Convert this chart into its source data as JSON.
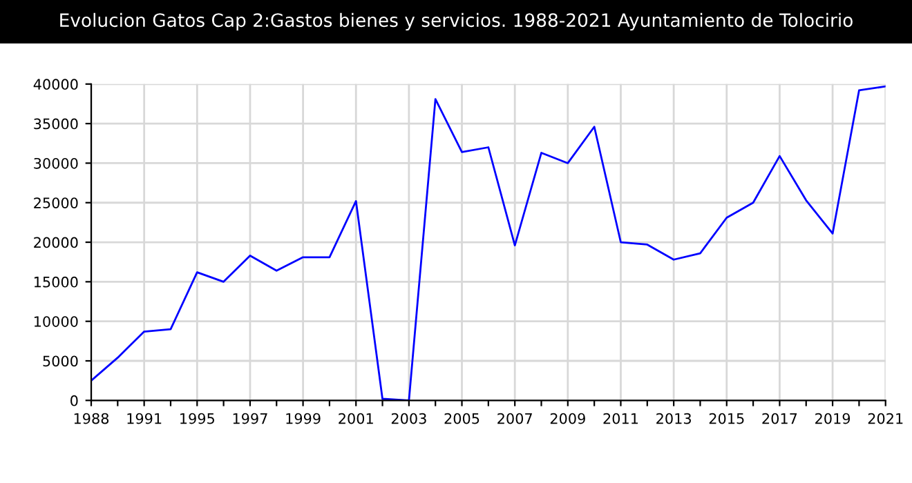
{
  "chart_data": {
    "type": "line",
    "title": "Evolucion Gatos Cap 2:Gastos bienes y servicios. 1988-2021 Ayuntamiento de Tolocirio",
    "categories": [
      "1988",
      null,
      "1991",
      null,
      "1995",
      null,
      "1997",
      null,
      "1999",
      null,
      "2001",
      null,
      "2003",
      null,
      "2005",
      null,
      "2007",
      null,
      "2009",
      null,
      "2011",
      null,
      "2013",
      null,
      "2015",
      null,
      "2017",
      null,
      "2019",
      null,
      "2021"
    ],
    "series": [
      {
        "color": "#0000ff",
        "values": [
          2500,
          5400,
          8700,
          9000,
          16200,
          15000,
          18300,
          16400,
          18100,
          18100,
          25200,
          200,
          0,
          38100,
          31400,
          32000,
          19600,
          31300,
          30000,
          34600,
          20000,
          19700,
          17800,
          18600,
          23100,
          25000,
          30900,
          25300,
          21100,
          39200,
          39700
        ]
      }
    ],
    "ylim": [
      0,
      40000
    ],
    "yticks": [
      0,
      5000,
      10000,
      15000,
      20000,
      25000,
      30000,
      35000,
      40000
    ],
    "grid": true,
    "marker": "none",
    "line_style": "solid"
  }
}
